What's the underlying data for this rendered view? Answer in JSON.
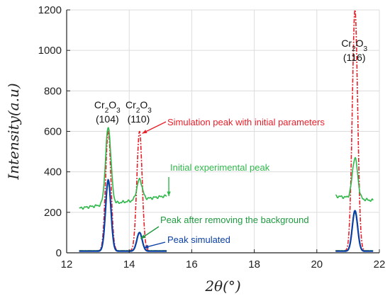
{
  "chart_data": {
    "type": "line",
    "xlabel": "2θ(°)",
    "ylabel": "Intensity(a.u)",
    "xlim": [
      12,
      22
    ],
    "ylim": [
      0,
      1200
    ],
    "xticks": [
      12,
      14,
      16,
      18,
      20,
      22
    ],
    "yticks": [
      0,
      200,
      400,
      600,
      800,
      1000,
      1200
    ],
    "grid": true,
    "peaks": [
      {
        "base": "Cr",
        "sub1": "2",
        "mid": "O",
        "sub2": "3",
        "hkl": "(104)",
        "x": 13.3
      },
      {
        "base": "Cr",
        "sub1": "2",
        "mid": "O",
        "sub2": "3",
        "hkl": "(110)",
        "x": 14.3
      },
      {
        "base": "Cr",
        "sub1": "2",
        "mid": "O",
        "sub2": "3",
        "hkl": "(116)",
        "x": 21.2
      }
    ],
    "series": [
      {
        "name": "Simulation peak with initial parameters",
        "color": "#e8202a",
        "style": "dashdot",
        "segments": [
          {
            "x0": 12.4,
            "x1": 15.2,
            "baseline": 10,
            "peaks": [
              {
                "center": 13.33,
                "amp": 590,
                "width": 0.085
              },
              {
                "center": 14.33,
                "amp": 590,
                "width": 0.085
              }
            ]
          },
          {
            "x0": 20.6,
            "x1": 21.8,
            "baseline": 10,
            "peaks": [
              {
                "center": 21.22,
                "amp": 1190,
                "width": 0.085
              }
            ]
          }
        ]
      },
      {
        "name": "Initial experimental peak",
        "color": "#2fb84a",
        "style": "solid",
        "segments": [
          {
            "x0": 12.4,
            "x1": 15.2,
            "baseline": 220,
            "slope": 22,
            "peaks": [
              {
                "center": 13.33,
                "amp": 380,
                "width": 0.085
              },
              {
                "center": 14.33,
                "amp": 100,
                "width": 0.085
              }
            ]
          },
          {
            "x0": 20.6,
            "x1": 21.8,
            "baseline": 280,
            "slope": -18,
            "peaks": [
              {
                "center": 21.22,
                "amp": 200,
                "width": 0.085
              }
            ]
          }
        ]
      },
      {
        "name": "Peak after removing the background",
        "color": "#1f9a3f",
        "style": "solid",
        "segments": [
          {
            "x0": 12.4,
            "x1": 15.2,
            "baseline": 10,
            "peaks": [
              {
                "center": 13.33,
                "amp": 340,
                "width": 0.085
              },
              {
                "center": 14.33,
                "amp": 90,
                "width": 0.085
              }
            ]
          },
          {
            "x0": 20.6,
            "x1": 21.8,
            "baseline": 10,
            "peaks": [
              {
                "center": 21.22,
                "amp": 190,
                "width": 0.085
              }
            ]
          }
        ]
      },
      {
        "name": "Peak simulated",
        "color": "#0a3fa6",
        "style": "solid",
        "segments": [
          {
            "x0": 12.4,
            "x1": 15.2,
            "baseline": 8,
            "peaks": [
              {
                "center": 13.33,
                "amp": 352,
                "width": 0.085
              },
              {
                "center": 14.33,
                "amp": 92,
                "width": 0.085
              }
            ]
          },
          {
            "x0": 20.6,
            "x1": 21.8,
            "baseline": 8,
            "peaks": [
              {
                "center": 21.22,
                "amp": 200,
                "width": 0.085
              }
            ]
          }
        ]
      }
    ],
    "annotations": [
      {
        "series": 0,
        "text": "Simulation peak with initial parameters",
        "target": [
          14.35,
          590
        ]
      },
      {
        "series": 1,
        "text": "Initial experimental peak",
        "target": [
          15.2,
          280
        ]
      },
      {
        "series": 2,
        "text": "Peak after removing the background",
        "target": [
          14.3,
          70
        ]
      },
      {
        "series": 3,
        "text": "Peak simulated",
        "target": [
          14.4,
          25
        ]
      }
    ]
  }
}
